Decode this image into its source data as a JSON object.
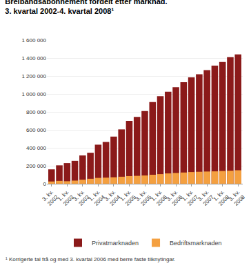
{
  "chart_data": {
    "type": "bar",
    "title": "Breibandsabonnement fordelt etter marknad.",
    "subtitle": "3. kvartal 2002-4. kvartal 2008¹",
    "annotations": [
      "¹ Korrigerte tal frå og med 3. kvartal 2006 med berre faste tilknytingar."
    ],
    "categories": [
      "3. kv.\n2002",
      null,
      "1. kv.\n2003",
      null,
      "3. kv.\n2003",
      null,
      "1. kv.\n2004",
      null,
      "3. kv.\n2004",
      null,
      "1. kv.\n2005",
      null,
      "3. kv.\n2005",
      null,
      "1. kv.\n2006",
      null,
      "3. kv.\n2006",
      null,
      "1. kv.\n2007",
      null,
      "3. kv.\n2007",
      null,
      "1. kv.\n2008",
      null,
      "3. kv.\n2008"
    ],
    "series": [
      {
        "name": "Privatmarknaden",
        "color": "#8B1A1A",
        "values": [
          160000,
          205000,
          230000,
          255000,
          315000,
          345000,
          435000,
          465000,
          525000,
          605000,
          700000,
          745000,
          810000,
          910000,
          975000,
          1025000,
          1075000,
          1130000,
          1185000,
          1220000,
          1265000,
          1315000,
          1355000,
          1410000,
          1440000
        ]
      },
      {
        "name": "Bedriftsmarknaden",
        "color": "#F4A040",
        "values": [
          25000,
          32000,
          28000,
          35000,
          45000,
          55000,
          65000,
          68000,
          72000,
          78000,
          85000,
          88000,
          92000,
          100000,
          107000,
          115000,
          120000,
          125000,
          130000,
          133000,
          136000,
          138000,
          142000,
          145000,
          150000
        ]
      }
    ],
    "stacked": false,
    "ylim": [
      0,
      1600000
    ],
    "yticks": [
      0,
      {
        "value": 200000,
        "label": "200 000"
      },
      {
        "value": 400000,
        "label": "400 000"
      },
      {
        "value": 600000,
        "label": "600 000"
      },
      {
        "value": 800000,
        "label": "800 000"
      },
      {
        "value": 1000000,
        "label": "1 000 000"
      },
      {
        "value": 1200000,
        "label": "1 200 000"
      },
      {
        "value": 1400000,
        "label": "1 400 000"
      },
      {
        "value": 1600000,
        "label": "1 600 000"
      }
    ],
    "grid": true,
    "legend": "bottom"
  }
}
